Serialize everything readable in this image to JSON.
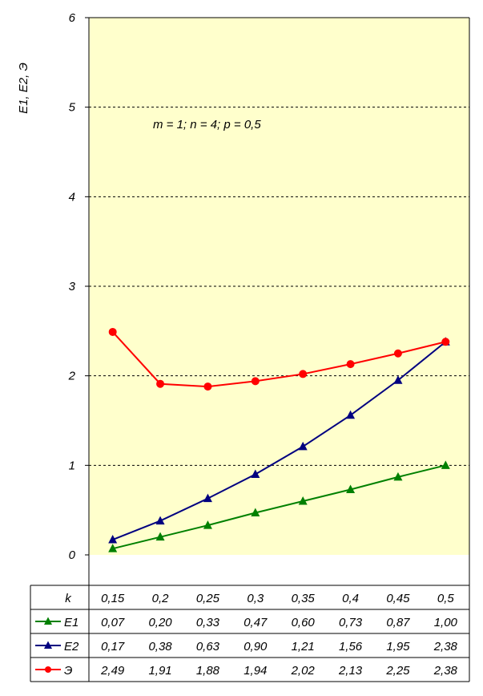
{
  "chart_data": {
    "type": "line",
    "ylabel": "E1, E2, Э",
    "annotation": "m = 1; n = 4; p = 0,5",
    "ylim": [
      0,
      6
    ],
    "yticks": [
      "0",
      "1",
      "2",
      "3",
      "4",
      "5",
      "6"
    ],
    "grid": "horizontal dashed",
    "plot_background": "#ffffcc",
    "table": {
      "x_label": "k",
      "x": [
        "0,15",
        "0,2",
        "0,25",
        "0,3",
        "0,35",
        "0,4",
        "0,45",
        "0,5"
      ]
    },
    "x": [
      0.15,
      0.2,
      0.25,
      0.3,
      0.35,
      0.4,
      0.45,
      0.5
    ],
    "series": [
      {
        "name": "E1",
        "color": "#008000",
        "marker": "triangle",
        "values": [
          0.07,
          0.2,
          0.33,
          0.47,
          0.6,
          0.73,
          0.87,
          1.0
        ],
        "labels": [
          "0,07",
          "0,20",
          "0,33",
          "0,47",
          "0,60",
          "0,73",
          "0,87",
          "1,00"
        ]
      },
      {
        "name": "E2",
        "color": "#000080",
        "marker": "triangle",
        "values": [
          0.17,
          0.38,
          0.63,
          0.9,
          1.21,
          1.56,
          1.95,
          2.38
        ],
        "labels": [
          "0,17",
          "0,38",
          "0,63",
          "0,90",
          "1,21",
          "1,56",
          "1,95",
          "2,38"
        ]
      },
      {
        "name": "Э",
        "color": "#ff0000",
        "marker": "circle",
        "values": [
          2.49,
          1.91,
          1.88,
          1.94,
          2.02,
          2.13,
          2.25,
          2.38
        ],
        "labels": [
          "2,49",
          "1,91",
          "1,88",
          "1,94",
          "2,02",
          "2,13",
          "2,25",
          "2,38"
        ]
      }
    ]
  }
}
